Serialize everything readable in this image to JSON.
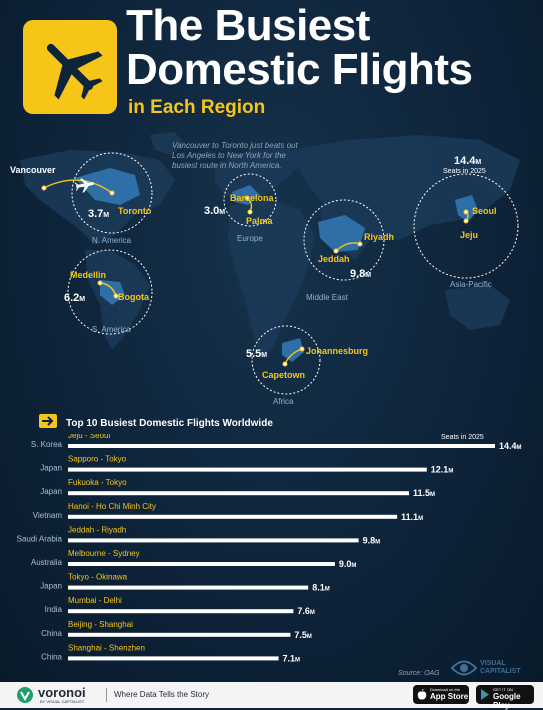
{
  "header": {
    "title_line1": "The Busiest",
    "title_line2": "Domestic Flights",
    "subtitle": "in Each Region"
  },
  "map": {
    "note": "Vancouver to Toronto just beats out Los Angeles to New York for the busiest route in North America.",
    "routes": [
      {
        "region": "N. America",
        "from": "Vancouver",
        "to": "Toronto",
        "value": "3.7",
        "unit": "M"
      },
      {
        "region": "S. America",
        "from": "Medellin",
        "to": "Bogota",
        "value": "6.2",
        "unit": "M"
      },
      {
        "region": "Europe",
        "from": "Barcelona",
        "to": "Palma",
        "value": "3.0",
        "unit": "M"
      },
      {
        "region": "Middle East",
        "from": "Jeddah",
        "to": "Riyadh",
        "value": "9.8",
        "unit": "M"
      },
      {
        "region": "Africa",
        "from": "Capetown",
        "to": "Johannesburg",
        "value": "5.5",
        "unit": "M"
      },
      {
        "region": "Asia-Pacific",
        "from": "Jeju",
        "to": "Seoul",
        "value": "14.4",
        "unit": "M"
      }
    ],
    "seats_note": "Seats in 2025"
  },
  "chart_data": {
    "type": "bar",
    "title": "Top 10 Busiest Domestic Flights Worldwide",
    "value_label": "Seats in 2025",
    "unit": "M",
    "categories": [
      "Jeju - Seoul",
      "Sapporo - Tokyo",
      "Fukuoka - Tokyo",
      "Hanoi - Ho Chi Minh City",
      "Jeddah - Riyadh",
      "Melbourne - Sydney",
      "Tokyo - Okinawa",
      "Mumbai - Delhi",
      "Beijing - Shanghai",
      "Shanghai - Shenzhen"
    ],
    "countries": [
      "S. Korea",
      "Japan",
      "Japan",
      "Vietnam",
      "Saudi Arabia",
      "Australia",
      "Japan",
      "India",
      "China",
      "China"
    ],
    "values": [
      14.4,
      12.1,
      11.5,
      11.1,
      9.8,
      9.0,
      8.1,
      7.6,
      7.5,
      7.1
    ],
    "value_labels": [
      "14.4",
      "12.1",
      "11.5",
      "11.1",
      "9.8",
      "9.0",
      "8.1",
      "7.6",
      "7.5",
      "7.1"
    ],
    "xlim": [
      0,
      14.4
    ],
    "bar_color": "#ffffff",
    "accent_color": "#f5c518"
  },
  "source": "Source: OAG",
  "brand": {
    "name": "VISUAL CAPITALIST"
  },
  "footer": {
    "app_name": "voronoi",
    "app_by": "BY VISUAL CAPITALIST",
    "tagline": "Where Data Tells the Story",
    "app_store_small": "Download on the",
    "app_store": "App Store",
    "google_small": "GET IT ON",
    "google_play": "Google Play"
  }
}
